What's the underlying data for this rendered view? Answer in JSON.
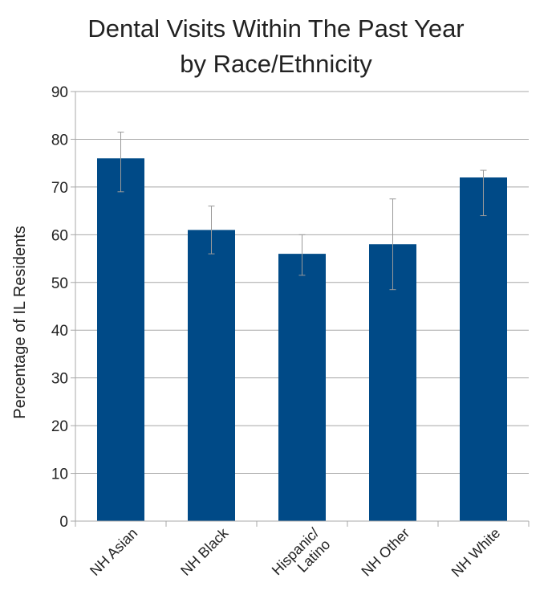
{
  "chart_data": {
    "type": "bar",
    "title_lines": [
      "Dental Visits Within The Past Year",
      "by Race/Ethnicity"
    ],
    "ylabel": "Percentage of IL Residents",
    "xlabel": "",
    "ylim": [
      0,
      90
    ],
    "yticks": [
      0,
      10,
      20,
      30,
      40,
      50,
      60,
      70,
      80,
      90
    ],
    "categories": [
      [
        "NH Asian"
      ],
      [
        "NH Black"
      ],
      [
        "Hispanic/",
        "Latino"
      ],
      [
        "NH Other"
      ],
      [
        "NH White"
      ]
    ],
    "values": [
      76,
      61,
      56,
      58,
      72
    ],
    "error_low": [
      69,
      56,
      51.5,
      48.5,
      64
    ],
    "error_high": [
      81.5,
      66,
      60,
      67.5,
      73.5
    ],
    "grid": true,
    "legend": "none",
    "colors": {
      "bar": "#004a87",
      "error_bar": "#9a9a9a",
      "grid": "#a8a8a8",
      "text": "#222222"
    }
  }
}
